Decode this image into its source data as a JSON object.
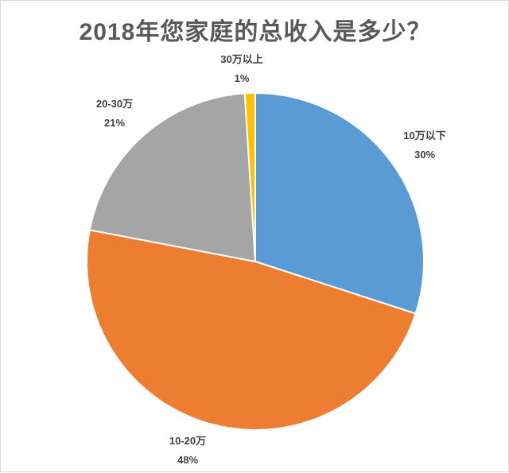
{
  "chart_data": {
    "type": "pie",
    "title": "2018年您家庭的总收入是多少？",
    "slices": [
      {
        "label": "10万以下",
        "value": 30,
        "value_text": "30%",
        "color": "#5b9bd5"
      },
      {
        "label": "10-20万",
        "value": 48,
        "value_text": "48%",
        "color": "#ed7d31"
      },
      {
        "label": "20-30万",
        "value": 21,
        "value_text": "21%",
        "color": "#a5a5a5"
      },
      {
        "label": "30万以上",
        "value": 1,
        "value_text": "1%",
        "color": "#ffc000"
      }
    ],
    "start": "12 o'clock",
    "direction": "clockwise",
    "legend": "none",
    "data_labels": "category and percentage outside slices"
  }
}
